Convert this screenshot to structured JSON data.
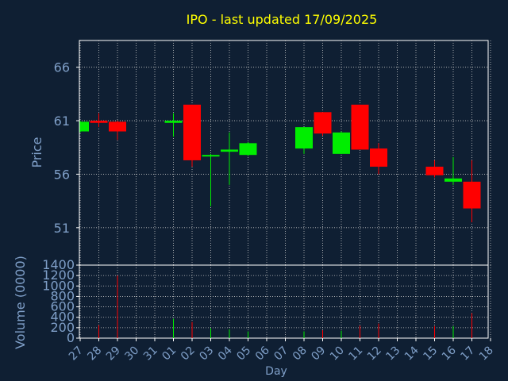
{
  "chart_data": {
    "type": "candlestick",
    "title": "IPO - last updated 17/09/2025",
    "xlabel": "Day",
    "price_panel": {
      "ylabel": "Price",
      "yticks": [
        51,
        56,
        61,
        66
      ],
      "ylim": [
        47.5,
        68.5
      ],
      "grid": true
    },
    "volume_panel": {
      "ylabel": "Volume (0000)",
      "yticks": [
        0,
        200,
        400,
        600,
        800,
        1000,
        1200,
        1400
      ],
      "ylim": [
        0,
        1400
      ],
      "grid": true
    },
    "x_ticks": [
      "27",
      "28",
      "29",
      "30",
      "31",
      "01",
      "02",
      "03",
      "04",
      "05",
      "06",
      "07",
      "08",
      "09",
      "10",
      "11",
      "12",
      "13",
      "14",
      "15",
      "16",
      "17",
      "18"
    ],
    "candles": [
      {
        "day": "27",
        "open": 60.0,
        "high": 61.0,
        "low": 59.9,
        "close": 60.9
      },
      {
        "day": "28",
        "open": 61.0,
        "high": 61.7,
        "low": 60.4,
        "close": 60.8
      },
      {
        "day": "29",
        "open": 60.9,
        "high": 61.0,
        "low": 59.2,
        "close": 60.0
      },
      {
        "day": "01",
        "open": 60.8,
        "high": 61.7,
        "low": 59.5,
        "close": 61.0
      },
      {
        "day": "02",
        "open": 62.5,
        "high": 62.5,
        "low": 56.7,
        "close": 57.3
      },
      {
        "day": "03",
        "open": 57.7,
        "high": 57.9,
        "low": 53.0,
        "close": 57.8
      },
      {
        "day": "04",
        "open": 58.1,
        "high": 59.9,
        "low": 55.0,
        "close": 58.3
      },
      {
        "day": "05",
        "open": 57.8,
        "high": 59.0,
        "low": 57.7,
        "close": 58.9
      },
      {
        "day": "08",
        "open": 58.4,
        "high": 60.4,
        "low": 57.9,
        "close": 60.4
      },
      {
        "day": "09",
        "open": 61.8,
        "high": 61.8,
        "low": 59.6,
        "close": 59.8
      },
      {
        "day": "10",
        "open": 57.9,
        "high": 60.0,
        "low": 57.9,
        "close": 59.9
      },
      {
        "day": "11",
        "open": 62.5,
        "high": 62.5,
        "low": 58.3,
        "close": 58.3
      },
      {
        "day": "12",
        "open": 58.4,
        "high": 58.9,
        "low": 56.0,
        "close": 56.7
      },
      {
        "day": "15",
        "open": 56.7,
        "high": 57.3,
        "low": 55.7,
        "close": 55.9
      },
      {
        "day": "16",
        "open": 55.3,
        "high": 57.6,
        "low": 55.0,
        "close": 55.6
      },
      {
        "day": "17",
        "open": 55.3,
        "high": 57.3,
        "low": 51.5,
        "close": 52.8
      }
    ],
    "volume": [
      {
        "day": "27",
        "value": 0
      },
      {
        "day": "28",
        "value": 250
      },
      {
        "day": "29",
        "value": 1200
      },
      {
        "day": "01",
        "value": 370
      },
      {
        "day": "02",
        "value": 310
      },
      {
        "day": "03",
        "value": 190
      },
      {
        "day": "04",
        "value": 170
      },
      {
        "day": "05",
        "value": 130
      },
      {
        "day": "08",
        "value": 130
      },
      {
        "day": "09",
        "value": 150
      },
      {
        "day": "10",
        "value": 140
      },
      {
        "day": "11",
        "value": 240
      },
      {
        "day": "12",
        "value": 280
      },
      {
        "day": "15",
        "value": 230
      },
      {
        "day": "16",
        "value": 230
      },
      {
        "day": "17",
        "value": 480
      }
    ],
    "colors": {
      "background": "#0f1f33",
      "up": "#00ee00",
      "down": "#ff0000",
      "axis": "#ffffff",
      "grid": "#c8c8c8",
      "title": "#ffff00",
      "labels": "#7f9fc8"
    }
  }
}
